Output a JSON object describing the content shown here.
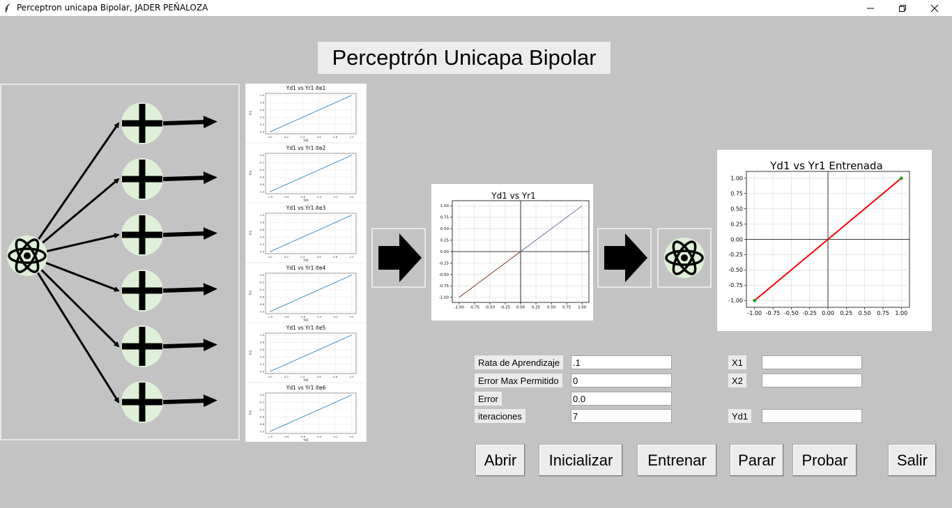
{
  "window": {
    "title": "Perceptron unicapa Bipolar, JADER PEÑALOZA"
  },
  "heading": "Perceptrón Unicapa Bipolar",
  "thumbnails": [
    {
      "title": "Yd1 vs Yr1 ite1",
      "xlabel": "Yd1",
      "ylabel": "Yr1",
      "x": [
        0.0,
        1.0
      ],
      "y": [
        0.0,
        1.0
      ],
      "xticks": [
        "0.0",
        "0.2",
        "0.4",
        "0.6",
        "0.8",
        "1.0"
      ],
      "yticks": [
        "0.0",
        "0.2",
        "0.4",
        "0.6",
        "0.8",
        "1.0"
      ]
    },
    {
      "title": "Yd1 vs Yr1 ite2",
      "xlabel": "Yd1",
      "ylabel": "Yr1",
      "x": [
        -1.0,
        0.0
      ],
      "y": [
        -1.0,
        0.0
      ],
      "xticks": [
        "-1.0",
        "-0.8",
        "-0.6",
        "-0.4",
        "-0.2",
        "0.0"
      ],
      "yticks": [
        "-1.0",
        "-0.8",
        "-0.6",
        "-0.4",
        "-0.2",
        "0.0"
      ]
    },
    {
      "title": "Yd1 vs Yr1 ite3",
      "xlabel": "Yd1",
      "ylabel": "Yr1",
      "x": [
        0.0,
        1.0
      ],
      "y": [
        0.0,
        1.0
      ],
      "xticks": [
        "0.0",
        "0.2",
        "0.4",
        "0.6",
        "0.8",
        "1.0"
      ],
      "yticks": [
        "0.0",
        "0.2",
        "0.4",
        "0.6",
        "0.8",
        "1.0"
      ]
    },
    {
      "title": "Yd1 vs Yr1 ite4",
      "xlabel": "Yd1",
      "ylabel": "Yr1",
      "x": [
        -1.0,
        0.0
      ],
      "y": [
        -1.0,
        0.0
      ],
      "xticks": [
        "-1.0",
        "-0.8",
        "-0.6",
        "-0.4",
        "-0.2",
        "0.0"
      ],
      "yticks": [
        "-1.0",
        "-0.8",
        "-0.6",
        "-0.4",
        "-0.2",
        "0.0"
      ]
    },
    {
      "title": "Yd1 vs Yr1 ite5",
      "xlabel": "Yd1",
      "ylabel": "Yr1",
      "x": [
        0.0,
        1.0
      ],
      "y": [
        0.0,
        1.0
      ],
      "xticks": [
        "0.0",
        "0.2",
        "0.4",
        "0.6",
        "0.8",
        "1.0"
      ],
      "yticks": [
        "0.0",
        "0.2",
        "0.4",
        "0.6",
        "0.8",
        "1.0"
      ]
    },
    {
      "title": "Yd1 vs Yr1 ite6",
      "xlabel": "Yd1",
      "ylabel": "Yr1",
      "x": [
        -1.0,
        0.0
      ],
      "y": [
        -1.0,
        0.0
      ],
      "xticks": [
        "-1.0",
        "-0.8",
        "-0.6",
        "-0.4",
        "-0.2",
        "0.0"
      ],
      "yticks": [
        "-1.0",
        "-0.8",
        "-0.6",
        "-0.4",
        "-0.2",
        "0.0"
      ]
    }
  ],
  "chart_data": [
    {
      "type": "line",
      "title": "Yd1 vs Yr1",
      "xlim": [
        -1.0,
        1.0
      ],
      "ylim": [
        -1.0,
        1.0
      ],
      "xticks": [
        "-1.00",
        "-0.75",
        "-0.50",
        "-0.25",
        "0.00",
        "0.25",
        "0.50",
        "0.75",
        "1.00"
      ],
      "yticks": [
        "-1.00",
        "-0.75",
        "-0.50",
        "-0.25",
        "0.00",
        "0.25",
        "0.50",
        "0.75",
        "1.00"
      ],
      "grid": true,
      "series": [
        {
          "x": [
            -1.0,
            0.0
          ],
          "y": [
            -1.0,
            0.0
          ],
          "color": "#8c4a3a"
        },
        {
          "x": [
            0.0,
            1.0
          ],
          "y": [
            0.0,
            1.0
          ],
          "color": "#7b7bb8"
        }
      ]
    },
    {
      "type": "line",
      "title": "Yd1 vs Yr1 Entrenada",
      "xlim": [
        -1.0,
        1.0
      ],
      "ylim": [
        -1.0,
        1.0
      ],
      "xticks": [
        "-1.00",
        "-0.75",
        "-0.50",
        "-0.25",
        "0.00",
        "0.25",
        "0.50",
        "0.75",
        "1.00"
      ],
      "yticks": [
        "-1.00",
        "-0.75",
        "-0.50",
        "-0.25",
        "0.00",
        "0.25",
        "0.50",
        "0.75",
        "1.00"
      ],
      "grid": true,
      "series": [
        {
          "x": [
            -1.0,
            1.0
          ],
          "y": [
            -1.0,
            1.0
          ],
          "color": "#ff0000",
          "marker_color": "#2ca02c"
        }
      ]
    }
  ],
  "form": {
    "rata_label": "Rata de Aprendizaje",
    "rata_value": ".1",
    "error_max_label": "Error Max Permitido",
    "error_max_value": "0",
    "error_label": "Error",
    "error_value": "0.0",
    "iteraciones_label": "iteraciones",
    "iteraciones_value": "7",
    "x1_label": "X1",
    "x1_value": "",
    "x2_label": "X2",
    "x2_value": "",
    "yd1_label": "Yd1",
    "yd1_value": ""
  },
  "buttons": {
    "abrir": "Abrir",
    "inicializar": "Inicializar",
    "entrenar": "Entrenar",
    "parar": "Parar",
    "probar": "Probar",
    "salir": "Salir"
  },
  "colors": {
    "background": "#c3c3c3",
    "node_fill": "#dff0d8",
    "thin_line": "#1f77b4"
  },
  "icons": [
    "atom-icon",
    "plus-icon",
    "arrow-right-icon",
    "feather-icon"
  ]
}
